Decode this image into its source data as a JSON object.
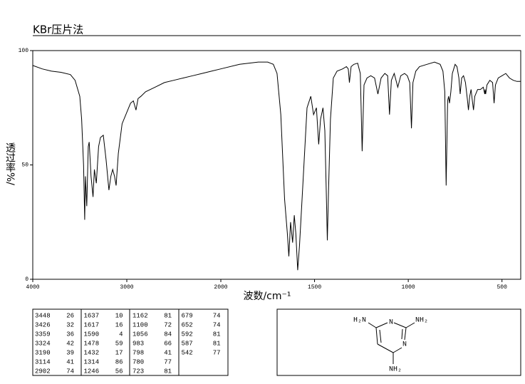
{
  "chart_data": {
    "type": "line",
    "title": "KBr压片法",
    "x_label": "波数/cm⁻¹",
    "y_label": "透过率%/",
    "xlim": [
      4000,
      400
    ],
    "x_scale_break": 2000,
    "xticks": [
      4000,
      3000,
      2000,
      1500,
      1000,
      500
    ],
    "ylim": [
      0,
      100
    ],
    "yticks": [
      0,
      50,
      100
    ],
    "x": [
      4000,
      3900,
      3800,
      3700,
      3600,
      3550,
      3500,
      3480,
      3460,
      3448,
      3440,
      3426,
      3410,
      3400,
      3380,
      3359,
      3345,
      3335,
      3324,
      3300,
      3280,
      3250,
      3220,
      3190,
      3170,
      3150,
      3130,
      3114,
      3090,
      3050,
      3000,
      2960,
      2930,
      2902,
      2880,
      2850,
      2800,
      2700,
      2600,
      2500,
      2400,
      2300,
      2200,
      2100,
      2000,
      1900,
      1800,
      1750,
      1720,
      1700,
      1680,
      1660,
      1645,
      1637,
      1628,
      1617,
      1608,
      1600,
      1590,
      1580,
      1560,
      1540,
      1520,
      1505,
      1490,
      1478,
      1468,
      1455,
      1445,
      1438,
      1432,
      1425,
      1415,
      1400,
      1380,
      1350,
      1330,
      1320,
      1314,
      1305,
      1290,
      1270,
      1256,
      1246,
      1236,
      1220,
      1200,
      1180,
      1162,
      1145,
      1125,
      1110,
      1100,
      1090,
      1075,
      1056,
      1040,
      1020,
      1005,
      992,
      983,
      975,
      960,
      940,
      900,
      860,
      830,
      815,
      805,
      798,
      790,
      785,
      780,
      773,
      765,
      750,
      740,
      730,
      723,
      715,
      705,
      695,
      685,
      679,
      672,
      665,
      658,
      652,
      645,
      630,
      615,
      600,
      592,
      590,
      587,
      580,
      565,
      550,
      542,
      535,
      520,
      500,
      480,
      460,
      440,
      420,
      400
    ],
    "series": [
      {
        "color": "#000000",
        "values": [
          93.5,
          92,
          91,
          90.5,
          89.5,
          87,
          80,
          70,
          50,
          26,
          45,
          32,
          58,
          60,
          45,
          36,
          48,
          45,
          42,
          58,
          62,
          63,
          52,
          39,
          45,
          48,
          45,
          41,
          55,
          68,
          73,
          77,
          78,
          74,
          79,
          80,
          82,
          84,
          86,
          87,
          88,
          89,
          90,
          91,
          92,
          94,
          95,
          95,
          94,
          90,
          72,
          35,
          20,
          10,
          25,
          16,
          28,
          20,
          4,
          15,
          45,
          75,
          80,
          72,
          75,
          59,
          70,
          75,
          65,
          40,
          17,
          40,
          70,
          88,
          91,
          92,
          93,
          92,
          86,
          93,
          94,
          94.5,
          90,
          56,
          85,
          88,
          89,
          88,
          81,
          88,
          90,
          89,
          72,
          87,
          90,
          84,
          89,
          90,
          89,
          86,
          66,
          86,
          91,
          93,
          94,
          95,
          94,
          91,
          82,
          41,
          78,
          80,
          77,
          82,
          90,
          94,
          93,
          88,
          81,
          88,
          89,
          86,
          79,
          74,
          80,
          83,
          78,
          74,
          80,
          83,
          83,
          84,
          81,
          83,
          81,
          85,
          87,
          86,
          77,
          85,
          88,
          89,
          90,
          88,
          87,
          86.5,
          86.5
        ]
      }
    ]
  },
  "peak_table": [
    [
      [
        3448,
        26
      ],
      [
        3426,
        32
      ],
      [
        3359,
        36
      ],
      [
        3324,
        42
      ],
      [
        3190,
        39
      ],
      [
        3114,
        41
      ],
      [
        2902,
        74
      ]
    ],
    [
      [
        1637,
        10
      ],
      [
        1617,
        16
      ],
      [
        1590,
        4
      ],
      [
        1478,
        59
      ],
      [
        1432,
        17
      ],
      [
        1314,
        86
      ],
      [
        1246,
        56
      ]
    ],
    [
      [
        1162,
        81
      ],
      [
        1100,
        72
      ],
      [
        1056,
        84
      ],
      [
        983,
        66
      ],
      [
        798,
        41
      ],
      [
        780,
        77
      ],
      [
        723,
        81
      ]
    ],
    [
      [
        679,
        74
      ],
      [
        652,
        74
      ],
      [
        592,
        81
      ],
      [
        587,
        81
      ],
      [
        542,
        77
      ]
    ]
  ],
  "molecule": {
    "labels": [
      "H₂N",
      "NH₂",
      "N",
      "N",
      "NH₂"
    ]
  }
}
